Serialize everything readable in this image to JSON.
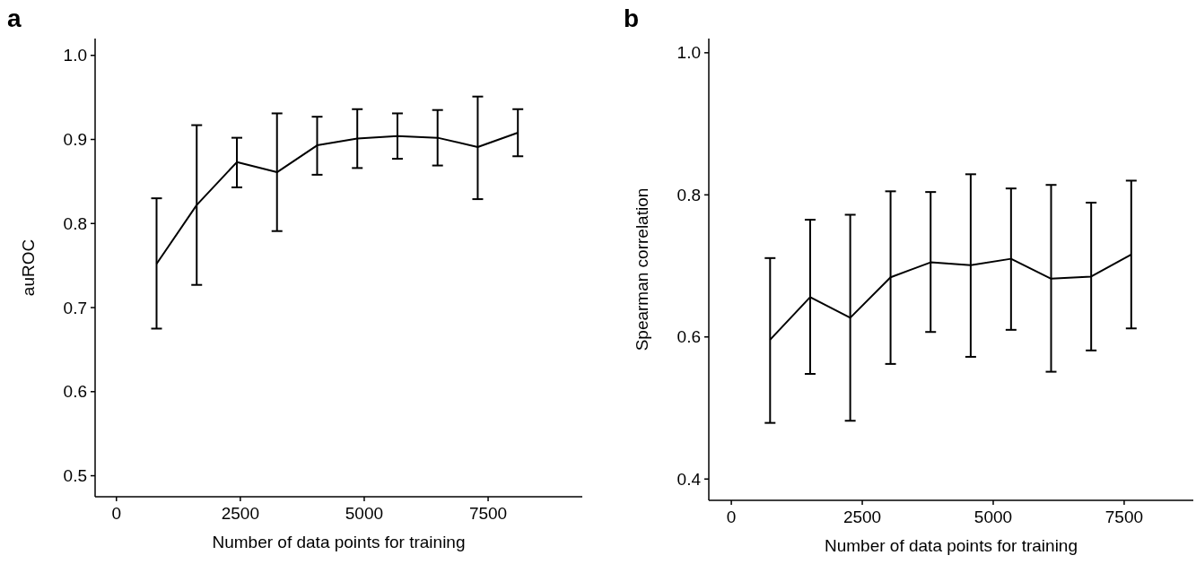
{
  "chart_data": [
    {
      "type": "line",
      "title": "a",
      "xlabel": "Number of data points for training",
      "ylabel": "auROC",
      "x": [
        810,
        1620,
        2430,
        3240,
        4050,
        4860,
        5670,
        6480,
        7290,
        8100
      ],
      "series": [
        {
          "color": "#000000",
          "values": [
            0.752,
            0.822,
            0.873,
            0.861,
            0.893,
            0.901,
            0.904,
            0.902,
            0.891,
            0.908
          ],
          "errors": [
            [
              0.675,
              0.83
            ],
            [
              0.727,
              0.917
            ],
            [
              0.843,
              0.902
            ],
            [
              0.791,
              0.931
            ],
            [
              0.858,
              0.927
            ],
            [
              0.866,
              0.936
            ],
            [
              0.877,
              0.931
            ],
            [
              0.869,
              0.935
            ],
            [
              0.829,
              0.951
            ],
            [
              0.88,
              0.936
            ]
          ]
        }
      ],
      "xlim": [
        -430,
        9400
      ],
      "xticks": [
        0,
        2500,
        5000,
        7500
      ],
      "ylim": [
        0.475,
        1.02
      ],
      "yticks": [
        0.5,
        0.6,
        0.7,
        0.8,
        0.9,
        {
          "value": 1,
          "label": "1.0"
        }
      ],
      "grid": false
    },
    {
      "type": "line",
      "title": "b",
      "xlabel": "Number of data points for training",
      "ylabel": "Spearman correlation",
      "x": [
        740,
        1505,
        2270,
        3040,
        3805,
        4570,
        5340,
        6105,
        6870,
        7635
      ],
      "series": [
        {
          "color": "#000000",
          "values": [
            0.596,
            0.656,
            0.627,
            0.684,
            0.705,
            0.701,
            0.71,
            0.682,
            0.685,
            0.716
          ],
          "errors": [
            [
              0.479,
              0.711
            ],
            [
              0.548,
              0.765
            ],
            [
              0.482,
              0.772
            ],
            [
              0.562,
              0.805
            ],
            [
              0.607,
              0.804
            ],
            [
              0.572,
              0.829
            ],
            [
              0.61,
              0.809
            ],
            [
              0.551,
              0.814
            ],
            [
              0.581,
              0.789
            ],
            [
              0.612,
              0.82
            ]
          ]
        }
      ],
      "xlim": [
        -430,
        8820
      ],
      "xticks": [
        0,
        2500,
        5000,
        7500
      ],
      "ylim": [
        0.37,
        1.02
      ],
      "yticks": [
        0.4,
        0.6,
        0.8,
        {
          "value": 1,
          "label": "1.0"
        }
      ],
      "grid": false
    }
  ]
}
